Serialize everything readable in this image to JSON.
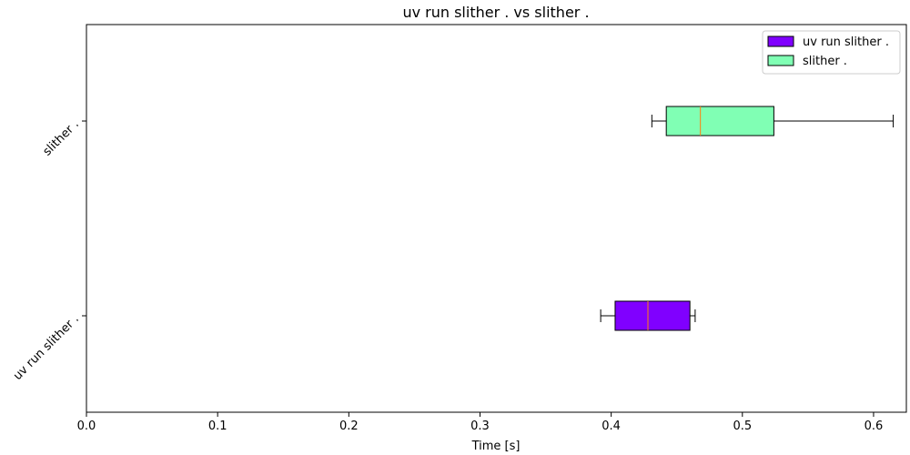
{
  "chart_data": {
    "type": "boxplot",
    "orientation": "horizontal",
    "title": "uv run slither . vs slither .",
    "xlabel": "Time [s]",
    "ylabel": "",
    "xlim": [
      0.0,
      0.625
    ],
    "xticks": [
      "0.0",
      "0.1",
      "0.2",
      "0.3",
      "0.4",
      "0.5",
      "0.6"
    ],
    "categories": [
      "uv run slither .",
      "slither ."
    ],
    "series": [
      {
        "name": "uv run slither .",
        "color": "#8000ff",
        "whisker_low": 0.392,
        "q1": 0.403,
        "median": 0.428,
        "q3": 0.46,
        "whisker_high": 0.464
      },
      {
        "name": "slither .",
        "color": "#80ffb4",
        "whisker_low": 0.431,
        "q1": 0.442,
        "median": 0.468,
        "q3": 0.524,
        "whisker_high": 0.615
      }
    ],
    "median_color": "#ff7f0e",
    "legend": {
      "position": "top-right",
      "entries": [
        "uv run slither .",
        "slither ."
      ]
    },
    "grid": false
  }
}
